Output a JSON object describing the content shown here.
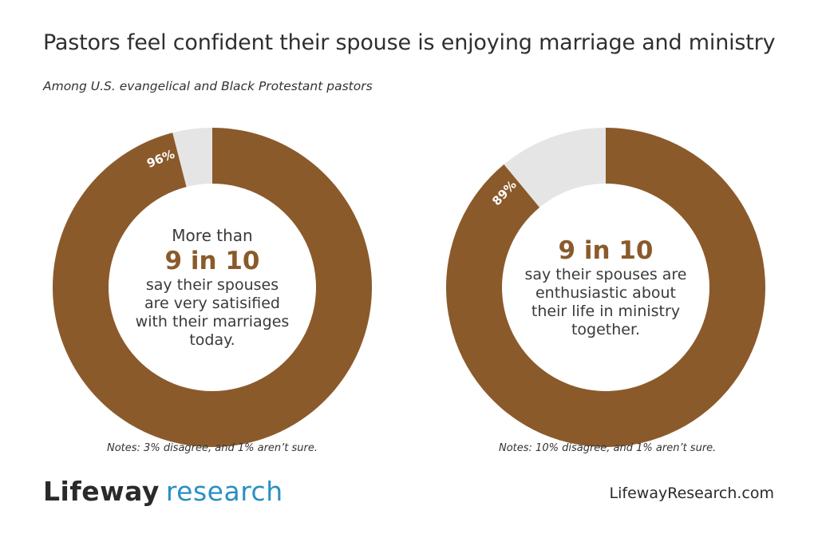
{
  "title": "Pastors feel confident their spouse is enjoying marriage and ministry",
  "subtitle": "Among U.S. evangelical and Black Protestant pastors",
  "colors": {
    "primary": "#8b5a2b",
    "remainder": "#e5e5e5",
    "accent": "#2a8fc4"
  },
  "chart_data": [
    {
      "type": "pie",
      "slices": [
        {
          "label": "",
          "value": 96
        },
        {
          "label": "",
          "value": 4
        }
      ],
      "data_label": "96%",
      "center": {
        "pre": "More than",
        "big": "9 in 10",
        "lines": [
          "say their spouses",
          "are very satisified",
          "with their marriages",
          "today."
        ]
      },
      "note": "Notes: 3% disagree, and 1% aren’t sure."
    },
    {
      "type": "pie",
      "slices": [
        {
          "label": "",
          "value": 89
        },
        {
          "label": "",
          "value": 11
        }
      ],
      "data_label": "89%",
      "center": {
        "pre": "",
        "big": "9 in 10",
        "lines": [
          "say their spouses are",
          "enthusiastic about",
          "their life in ministry",
          "together."
        ]
      },
      "note": "Notes: 10% disagree, and 1% aren’t sure."
    }
  ],
  "footer": {
    "logo_part1": "Lifeway",
    "logo_part2": "research",
    "website": "LifewayResearch.com"
  }
}
